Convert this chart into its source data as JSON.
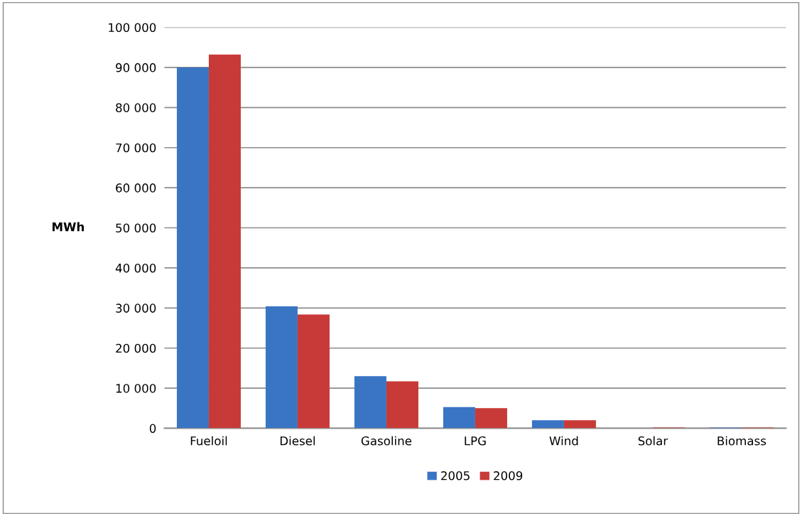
{
  "chart_data": {
    "type": "bar",
    "ylabel": "MWh",
    "categories": [
      "Fueloil",
      "Diesel",
      "Gasoline",
      "LPG",
      "Wind",
      "Solar",
      "Biomass"
    ],
    "series": [
      {
        "name": "2005",
        "color": "#3a75c4",
        "values": [
          90000,
          30400,
          13000,
          5300,
          2000,
          0,
          200
        ]
      },
      {
        "name": "2009",
        "color": "#c83a37",
        "values": [
          93200,
          28400,
          11700,
          5000,
          2000,
          200,
          200
        ]
      }
    ],
    "ylim": [
      0,
      100000
    ],
    "yticks": [
      {
        "value": 0,
        "label": "0"
      },
      {
        "value": 10000,
        "label": "10 000"
      },
      {
        "value": 20000,
        "label": "20 000"
      },
      {
        "value": 30000,
        "label": "30 000"
      },
      {
        "value": 40000,
        "label": "40 000"
      },
      {
        "value": 50000,
        "label": "50 000"
      },
      {
        "value": 60000,
        "label": "60 000"
      },
      {
        "value": 70000,
        "label": "70 000"
      },
      {
        "value": 80000,
        "label": "80 000"
      },
      {
        "value": 90000,
        "label": "90 000"
      },
      {
        "value": 100000,
        "label": "100 000"
      }
    ],
    "grid": "y",
    "legend": "bottom"
  }
}
